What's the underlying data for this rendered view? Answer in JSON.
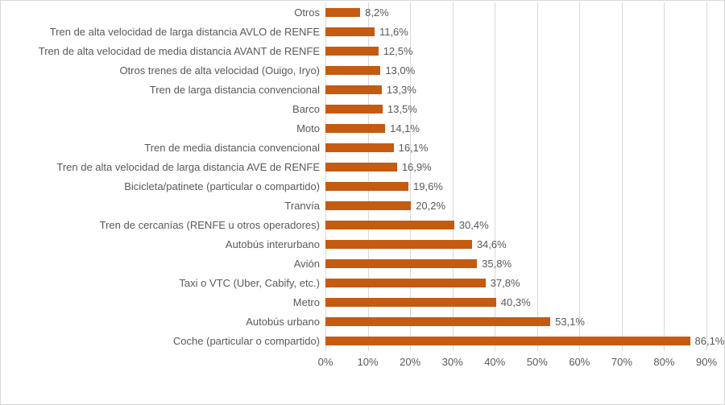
{
  "chart_data": {
    "type": "bar",
    "orientation": "horizontal",
    "title": "",
    "xlabel": "",
    "ylabel": "",
    "grid": true,
    "legend": false,
    "xlim": [
      0,
      90
    ],
    "x_ticks": [
      "0%",
      "10%",
      "20%",
      "30%",
      "40%",
      "50%",
      "60%",
      "70%",
      "80%",
      "90%"
    ],
    "categories": [
      "Otros",
      "Tren de alta velocidad de larga distancia AVLO de RENFE",
      "Tren de alta velocidad de media distancia AVANT de RENFE",
      "Otros trenes de alta velocidad (Ouigo, Iryo)",
      "Tren de larga distancia convencional",
      "Barco",
      "Moto",
      "Tren de media distancia convencional",
      "Tren de alta velocidad de larga distancia AVE de RENFE",
      "Bicicleta/patinete (particular o compartido)",
      "Tranvía",
      "Tren de cercanías (RENFE u otros operadores)",
      "Autobús interurbano",
      "Avión",
      "Taxi o VTC (Uber, Cabify, etc.)",
      "Metro",
      "Autobús urbano",
      "Coche (particular o compartido)"
    ],
    "values": [
      8.2,
      11.6,
      12.5,
      13.0,
      13.3,
      13.5,
      14.1,
      16.1,
      16.9,
      19.6,
      20.2,
      30.4,
      34.6,
      35.8,
      37.8,
      40.3,
      53.1,
      86.1
    ],
    "value_labels": [
      "8,2%",
      "11,6%",
      "12,5%",
      "13,0%",
      "13,3%",
      "13,5%",
      "14,1%",
      "16,1%",
      "16,9%",
      "19,6%",
      "20,2%",
      "30,4%",
      "34,6%",
      "35,8%",
      "37,8%",
      "40,3%",
      "53,1%",
      "86,1%"
    ],
    "colors": {
      "bar": "#C55A11",
      "gridline": "#D9D9D9",
      "text": "#595959",
      "border": "#D9D9D9",
      "background": "#FFFFFF"
    }
  }
}
